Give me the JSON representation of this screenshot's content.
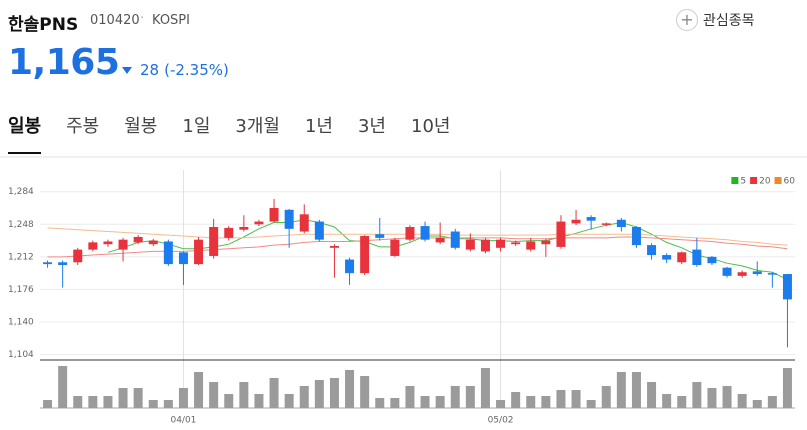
{
  "header": {
    "name": "한솔PNS",
    "code": "010420",
    "market": "KOSPI",
    "watch": "관심종목",
    "price": "1,165",
    "change": "28",
    "change_pct": "(-2.35%)"
  },
  "tabs": [
    "일봉",
    "주봉",
    "월봉",
    "1일",
    "3개월",
    "1년",
    "3년",
    "10년"
  ],
  "active_tab": 0,
  "chart_data": {
    "type": "candlestick",
    "categories": [
      null,
      null,
      null,
      null,
      null,
      null,
      null,
      null,
      null,
      "04/01",
      null,
      null,
      null,
      null,
      null,
      null,
      null,
      null,
      null,
      null,
      null,
      null,
      null,
      null,
      null,
      null,
      null,
      null,
      null,
      null,
      "05/02",
      null,
      null,
      null,
      null,
      null,
      null,
      null,
      null,
      null,
      null,
      null,
      null,
      null,
      null,
      null,
      null,
      null,
      null,
      null
    ],
    "open": [
      1206,
      1206,
      1206,
      1220,
      1226,
      1220,
      1228,
      1226,
      1229,
      1217,
      1204,
      1213,
      1233,
      1242,
      1248,
      1251,
      1264,
      1240,
      1251,
      1222,
      1209,
      1194,
      1237,
      1213,
      1231,
      1246,
      1228,
      1240,
      1220,
      1218,
      1222,
      1226,
      1220,
      1226,
      1223,
      1249,
      1256,
      1248,
      1253,
      1245,
      1225,
      1214,
      1206,
      1220,
      1212,
      1200,
      1191,
      1196,
      1194,
      1193
    ],
    "high": [
      1208,
      1208,
      1222,
      1230,
      1231,
      1233,
      1236,
      1232,
      1231,
      1218,
      1234,
      1254,
      1246,
      1258,
      1253,
      1276,
      1265,
      1270,
      1253,
      1226,
      1211,
      1236,
      1255,
      1233,
      1247,
      1251,
      1250,
      1243,
      1238,
      1233,
      1233,
      1230,
      1233,
      1232,
      1258,
      1264,
      1258,
      1250,
      1255,
      1246,
      1227,
      1216,
      1218,
      1233,
      1213,
      1201,
      1197,
      1207,
      1195,
      1193
    ],
    "low": [
      1200,
      1178,
      1203,
      1218,
      1223,
      1207,
      1226,
      1224,
      1202,
      1181,
      1203,
      1210,
      1230,
      1240,
      1246,
      1250,
      1222,
      1238,
      1229,
      1189,
      1181,
      1192,
      1230,
      1212,
      1229,
      1229,
      1226,
      1220,
      1218,
      1216,
      1218,
      1224,
      1218,
      1212,
      1221,
      1247,
      1242,
      1246,
      1240,
      1222,
      1209,
      1205,
      1204,
      1201,
      1203,
      1189,
      1189,
      1191,
      1178,
      1112
    ],
    "close": [
      1204,
      1203,
      1220,
      1228,
      1229,
      1231,
      1234,
      1230,
      1204,
      1204,
      1231,
      1245,
      1244,
      1245,
      1251,
      1266,
      1243,
      1259,
      1231,
      1224,
      1194,
      1235,
      1233,
      1231,
      1245,
      1231,
      1233,
      1222,
      1231,
      1231,
      1231,
      1228,
      1229,
      1230,
      1251,
      1253,
      1252,
      1249,
      1245,
      1225,
      1214,
      1209,
      1217,
      1203,
      1205,
      1191,
      1195,
      1193,
      1193,
      1165
    ],
    "up_color": "#e8323c",
    "down_color": "#1b7ced",
    "ylim": [
      1098,
      1308
    ],
    "yticks": [
      {
        "value": 1104,
        "label": "1,104"
      },
      {
        "value": 1140,
        "label": "1,140"
      },
      {
        "value": 1176,
        "label": "1,176"
      },
      {
        "value": 1212,
        "label": "1,212"
      },
      {
        "value": 1248,
        "label": "1,248"
      },
      {
        "value": 1284,
        "label": "1,284"
      }
    ],
    "grid": true,
    "series": [
      {
        "name": "5",
        "color": "#4cbf4c",
        "legend_color": "#22b522",
        "values": [
          null,
          null,
          null,
          null,
          1217,
          1222,
          1228,
          1230,
          1226,
          1221,
          1221,
          1223,
          1226,
          1234,
          1243,
          1250,
          1250,
          1253,
          1250,
          1245,
          1230,
          1229,
          1223,
          1223,
          1228,
          1235,
          1235,
          1232,
          1232,
          1230,
          1230,
          1229,
          1230,
          1230,
          1234,
          1238,
          1243,
          1247,
          1250,
          1245,
          1237,
          1228,
          1222,
          1214,
          1210,
          1205,
          1202,
          1197,
          1195,
          1187
        ]
      },
      {
        "name": "20",
        "color": "#f08a86",
        "legend_color": "#e8323c",
        "values": [
          1212,
          1212,
          1213,
          1214,
          1215,
          1216,
          1217,
          1218,
          1218,
          1218,
          1219,
          1220,
          1221,
          1222,
          1223,
          1225,
          1226,
          1228,
          1229,
          1229,
          1229,
          1230,
          1231,
          1232,
          1233,
          1233,
          1233,
          1233,
          1233,
          1233,
          1233,
          1232,
          1232,
          1232,
          1233,
          1233,
          1233,
          1233,
          1234,
          1234,
          1233,
          1232,
          1231,
          1230,
          1229,
          1227,
          1226,
          1224,
          1223,
          1221
        ]
      },
      {
        "name": "60",
        "color": "#f5bb8e",
        "legend_color": "#f0882a",
        "values": [
          1244,
          1243,
          1242,
          1241,
          1240,
          1239,
          1238,
          1237,
          1236,
          1235,
          1234,
          1233,
          1233,
          1233,
          1234,
          1235,
          1236,
          1237,
          1237,
          1237,
          1237,
          1237,
          1237,
          1237,
          1237,
          1237,
          1237,
          1236,
          1236,
          1236,
          1236,
          1236,
          1236,
          1236,
          1237,
          1237,
          1237,
          1237,
          1237,
          1237,
          1236,
          1235,
          1234,
          1233,
          1232,
          1231,
          1229,
          1228,
          1226,
          1225
        ]
      }
    ],
    "volume": {
      "color": "#9b9b9b",
      "ylim": [
        0,
        46
      ],
      "values": [
        8,
        42,
        12,
        12,
        12,
        20,
        20,
        8,
        8,
        20,
        36,
        26,
        14,
        26,
        14,
        30,
        14,
        22,
        28,
        30,
        38,
        32,
        10,
        10,
        22,
        12,
        12,
        22,
        22,
        40,
        8,
        16,
        12,
        12,
        18,
        18,
        8,
        22,
        36,
        36,
        26,
        14,
        12,
        26,
        20,
        22,
        14,
        8,
        12,
        40
      ]
    }
  }
}
